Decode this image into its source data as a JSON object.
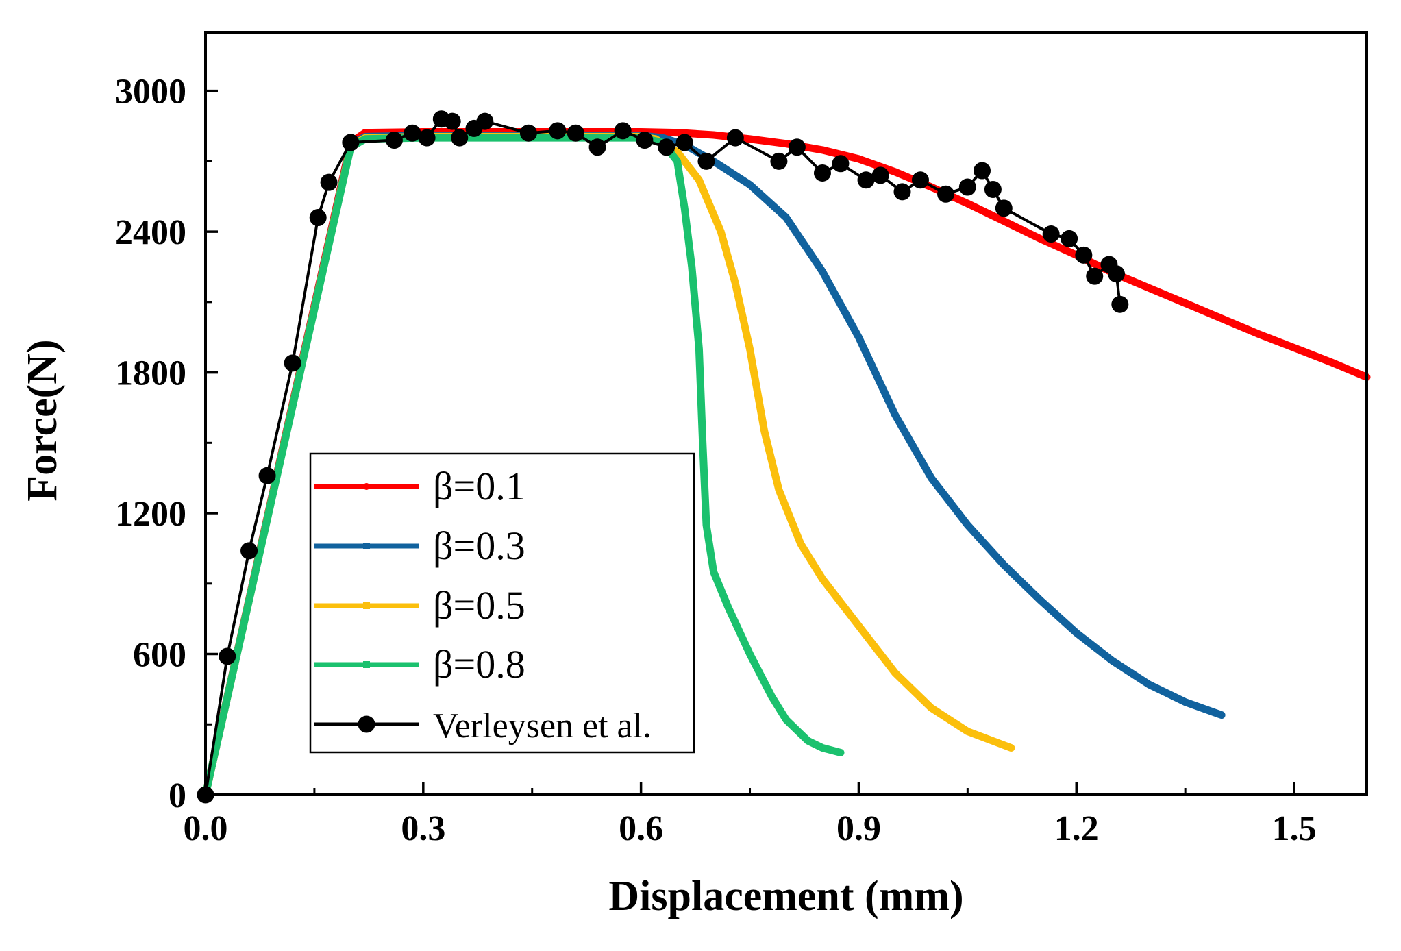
{
  "chart_data": {
    "type": "line",
    "title": "",
    "xlabel": "Displacement (mm)",
    "ylabel": "Force(N)",
    "xlim": [
      0,
      1.6
    ],
    "ylim": [
      0,
      3250
    ],
    "xticks": [
      0.0,
      0.3,
      0.6,
      0.9,
      1.2,
      1.5
    ],
    "xtick_labels": [
      "0.0",
      "0.3",
      "0.6",
      "0.9",
      "1.2",
      "1.5"
    ],
    "yticks": [
      0,
      600,
      1200,
      1800,
      2400,
      3000
    ],
    "ytick_labels": [
      "0",
      "600",
      "1200",
      "1800",
      "2400",
      "3000"
    ],
    "legend_position": "lower-left",
    "series": [
      {
        "name": "β=0.1",
        "color": "#ff0000",
        "marker": "small-dot",
        "x": [
          0,
          0.2,
          0.22,
          0.3,
          0.4,
          0.5,
          0.6,
          0.65,
          0.7,
          0.75,
          0.8,
          0.85,
          0.9,
          0.95,
          1.0,
          1.05,
          1.1,
          1.15,
          1.2,
          1.25,
          1.3,
          1.35,
          1.4,
          1.45,
          1.5,
          1.55,
          1.6
        ],
        "y": [
          0,
          2780,
          2822,
          2825,
          2825,
          2825,
          2825,
          2822,
          2812,
          2795,
          2775,
          2748,
          2710,
          2655,
          2590,
          2520,
          2445,
          2370,
          2300,
          2225,
          2160,
          2095,
          2030,
          1965,
          1905,
          1845,
          1780
        ]
      },
      {
        "name": "β=0.3",
        "color": "#11629e",
        "marker": "small-square",
        "x": [
          0,
          0.2,
          0.22,
          0.3,
          0.4,
          0.5,
          0.6,
          0.63,
          0.66,
          0.7,
          0.75,
          0.8,
          0.85,
          0.9,
          0.95,
          1.0,
          1.05,
          1.1,
          1.15,
          1.2,
          1.25,
          1.3,
          1.35,
          1.4
        ],
        "y": [
          0,
          2770,
          2805,
          2810,
          2810,
          2810,
          2810,
          2800,
          2770,
          2700,
          2600,
          2460,
          2230,
          1950,
          1620,
          1350,
          1150,
          980,
          830,
          690,
          570,
          470,
          395,
          340
        ]
      },
      {
        "name": "β=0.5",
        "color": "#fbbf0c",
        "marker": "small-square",
        "x": [
          0,
          0.2,
          0.22,
          0.3,
          0.4,
          0.5,
          0.6,
          0.62,
          0.65,
          0.68,
          0.71,
          0.73,
          0.75,
          0.77,
          0.79,
          0.82,
          0.85,
          0.9,
          0.95,
          1.0,
          1.05,
          1.11
        ],
        "y": [
          0,
          2765,
          2800,
          2805,
          2805,
          2805,
          2805,
          2795,
          2740,
          2620,
          2400,
          2180,
          1900,
          1550,
          1300,
          1070,
          920,
          720,
          520,
          370,
          270,
          200
        ]
      },
      {
        "name": "β=0.8",
        "color": "#1bc16e",
        "marker": "small-square",
        "x": [
          0,
          0.2,
          0.22,
          0.3,
          0.4,
          0.5,
          0.6,
          0.63,
          0.65,
          0.66,
          0.67,
          0.68,
          0.685,
          0.69,
          0.7,
          0.72,
          0.75,
          0.78,
          0.8,
          0.83,
          0.85,
          0.875
        ],
        "y": [
          0,
          2760,
          2795,
          2800,
          2800,
          2800,
          2800,
          2780,
          2700,
          2500,
          2250,
          1900,
          1500,
          1150,
          950,
          800,
          600,
          420,
          320,
          230,
          200,
          180
        ]
      },
      {
        "name": "Verleysen et al.",
        "color": "#000000",
        "marker": "big-dot",
        "x": [
          0,
          0.03,
          0.06,
          0.085,
          0.12,
          0.155,
          0.17,
          0.2,
          0.26,
          0.285,
          0.305,
          0.325,
          0.34,
          0.35,
          0.37,
          0.385,
          0.445,
          0.485,
          0.51,
          0.54,
          0.575,
          0.605,
          0.635,
          0.66,
          0.69,
          0.73,
          0.79,
          0.815,
          0.85,
          0.875,
          0.91,
          0.93,
          0.96,
          0.985,
          1.02,
          1.05,
          1.07,
          1.085,
          1.1,
          1.165,
          1.19,
          1.21,
          1.225,
          1.245,
          1.255,
          1.26
        ],
        "y": [
          0,
          590,
          1040,
          1360,
          1840,
          2460,
          2610,
          2780,
          2790,
          2820,
          2800,
          2880,
          2870,
          2800,
          2840,
          2870,
          2820,
          2830,
          2820,
          2760,
          2830,
          2790,
          2760,
          2780,
          2700,
          2800,
          2700,
          2760,
          2650,
          2690,
          2620,
          2640,
          2570,
          2620,
          2560,
          2590,
          2660,
          2580,
          2500,
          2390,
          2370,
          2300,
          2210,
          2260,
          2220,
          2090
        ]
      }
    ]
  }
}
